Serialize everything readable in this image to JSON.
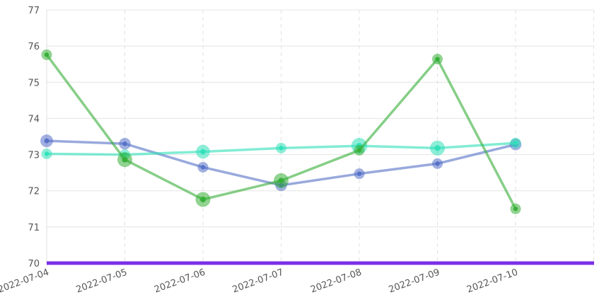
{
  "chart_data": {
    "type": "line",
    "categories": [
      "2022-07-04",
      "2022-07-05",
      "2022-07-06",
      "2022-07-07",
      "2022-07-08",
      "2022-07-09",
      "2022-07-10"
    ],
    "x_tick_labels": [
      "2022-07-04",
      "2022-07-05",
      "2022-07-06",
      "2022-07-07",
      "2022-07-08",
      "2022-07-09",
      "2022-07-10"
    ],
    "y_tick_labels": [
      "70",
      "71",
      "72",
      "73",
      "74",
      "75",
      "76",
      "77"
    ],
    "ylim": [
      70,
      77
    ],
    "grid": true,
    "series": [
      {
        "color": "#5470c6",
        "values": [
          73.38,
          73.3,
          72.65,
          72.15,
          72.47,
          72.75,
          73.28
        ],
        "sizes": [
          1.2,
          1.1,
          1.0,
          1.1,
          1.0,
          1.0,
          1.1
        ]
      },
      {
        "color": "#2fe0b8",
        "values": [
          73.02,
          73.0,
          73.08,
          73.18,
          73.24,
          73.18,
          73.32
        ],
        "sizes": [
          1.0,
          1.0,
          1.3,
          1.0,
          1.5,
          1.4,
          1.0
        ]
      },
      {
        "color": "#36ae37",
        "values": [
          75.76,
          72.86,
          71.76,
          72.28,
          73.12,
          75.64,
          71.5
        ],
        "sizes": [
          1.0,
          1.4,
          1.4,
          1.4,
          1.0,
          1.0,
          1.0
        ]
      }
    ],
    "baseline_color": "#7b2fe8"
  }
}
